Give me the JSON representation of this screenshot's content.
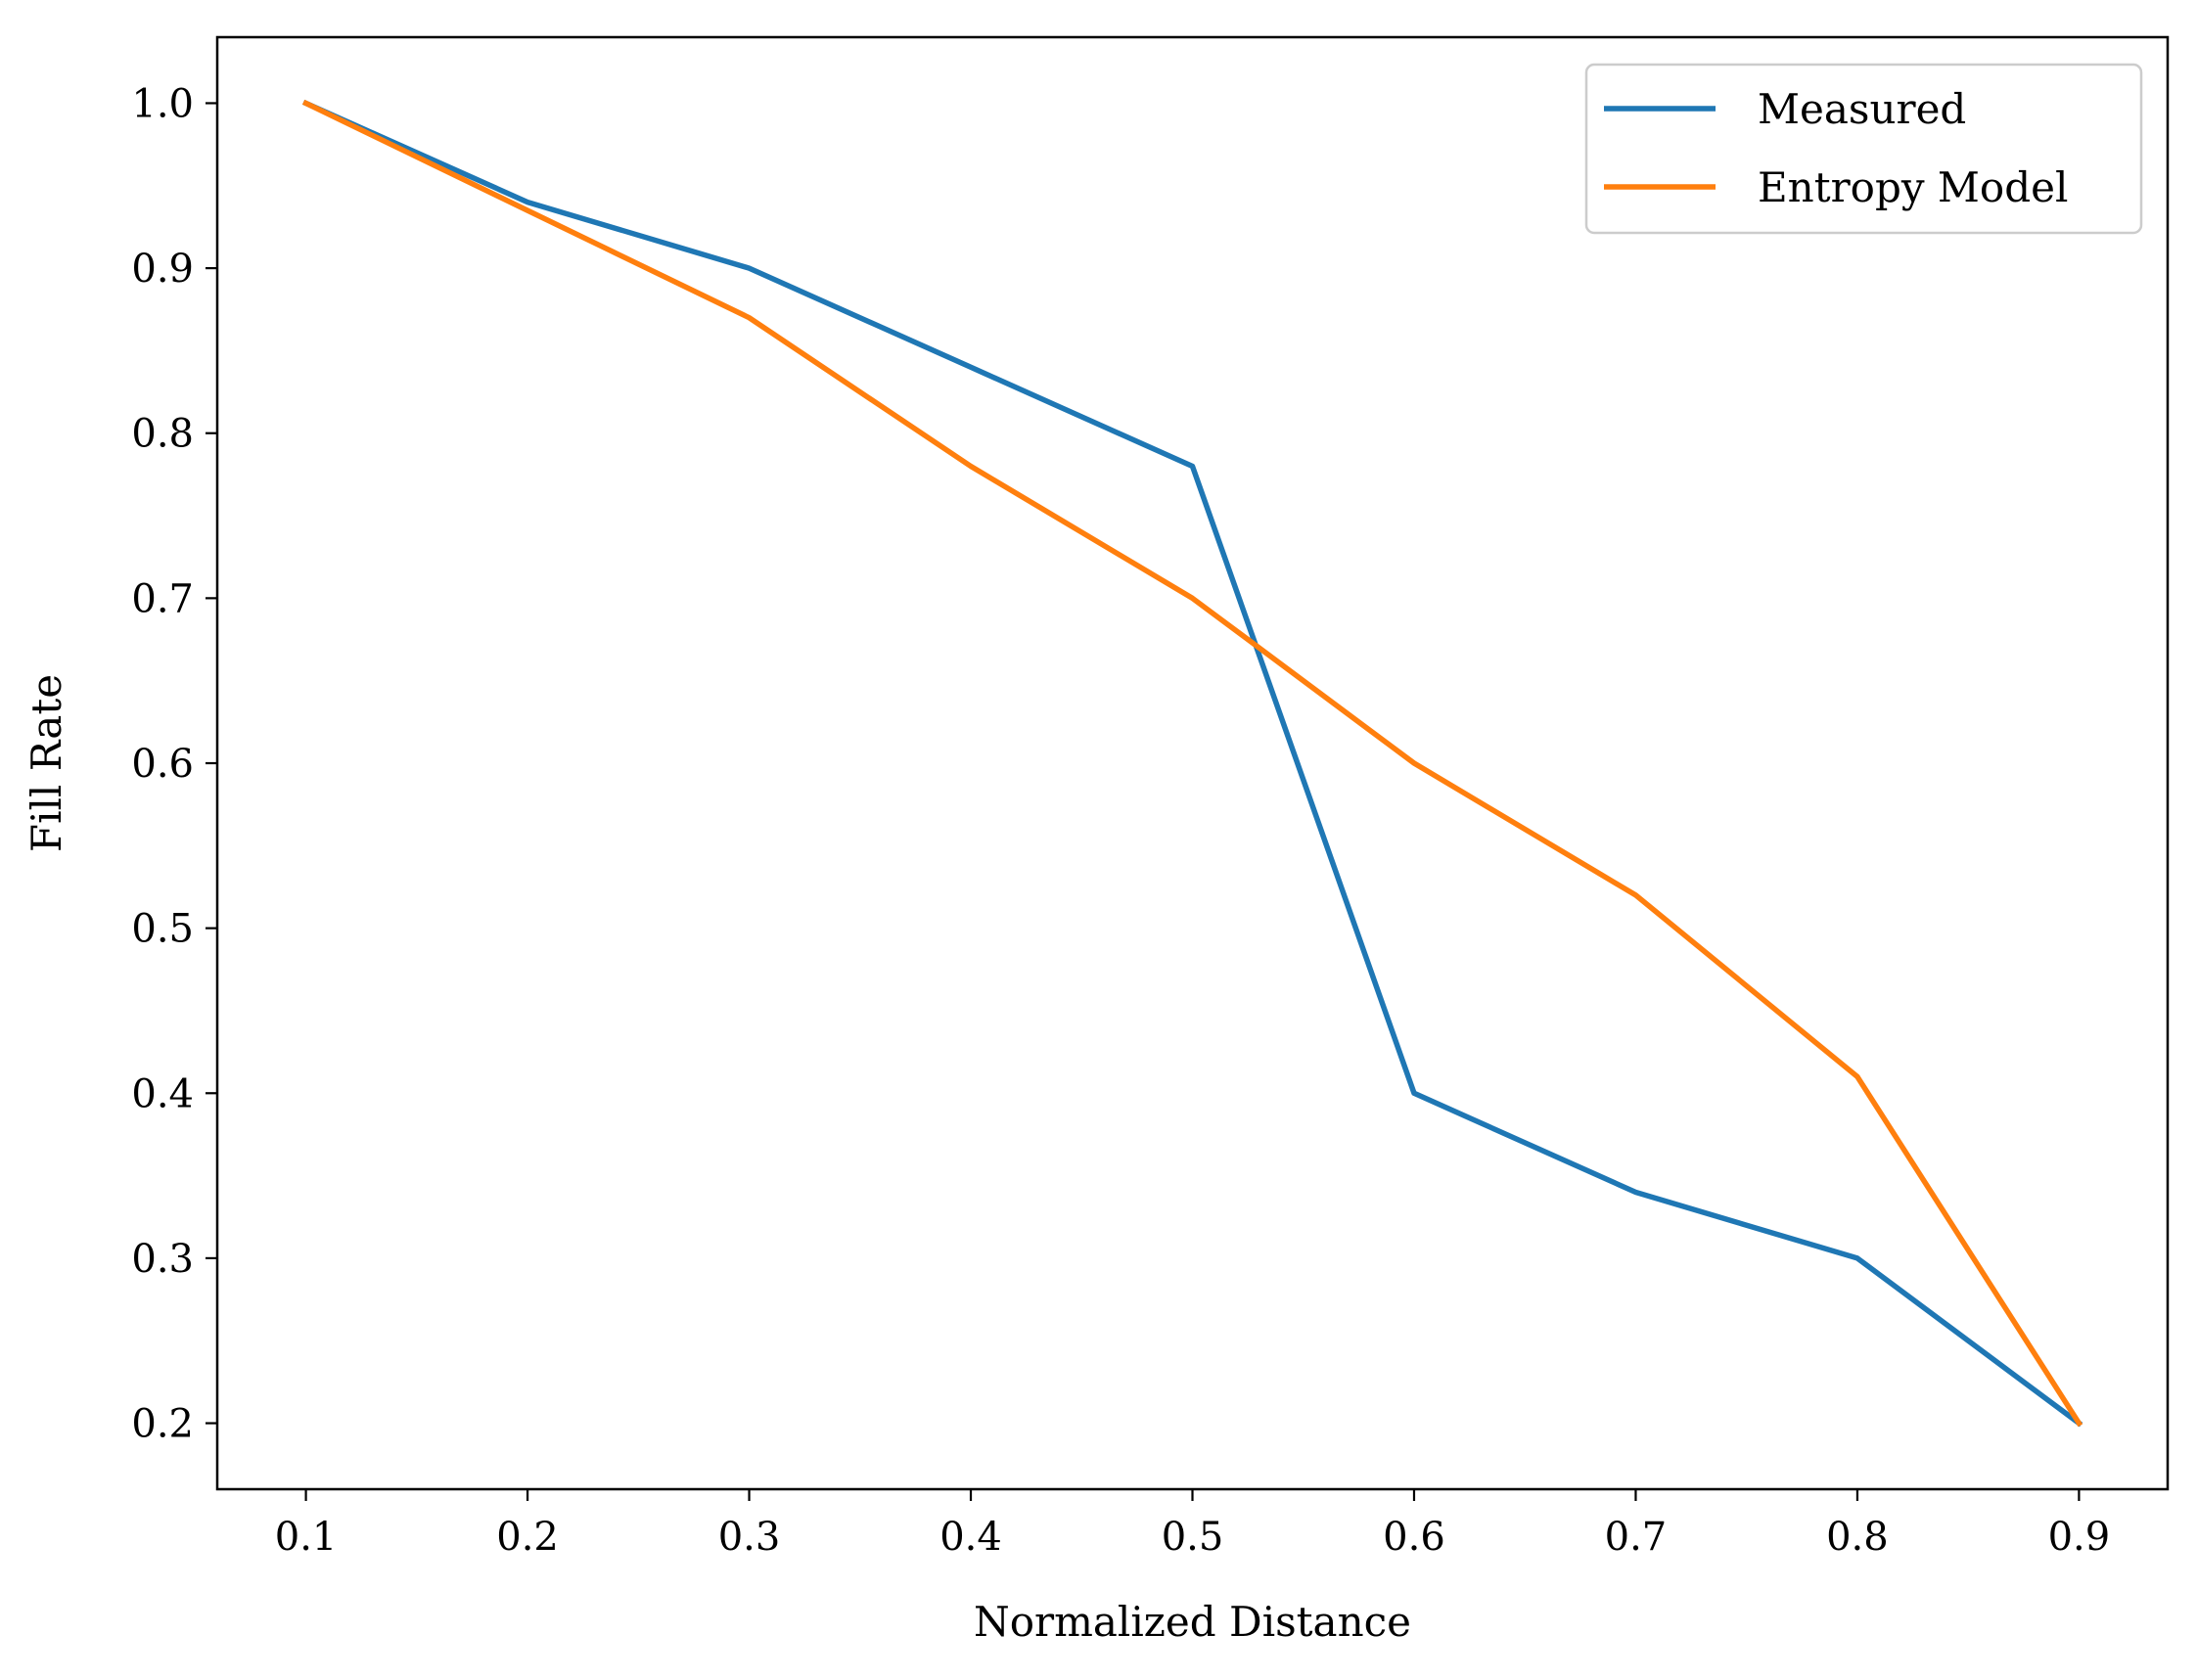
{
  "chart_data": {
    "type": "line",
    "title": "",
    "xlabel": "Normalized Distance",
    "ylabel": "Fill Rate",
    "xlim": [
      0.06,
      0.94
    ],
    "ylim": [
      0.16,
      1.04
    ],
    "xticks": [
      0.1,
      0.2,
      0.3,
      0.4,
      0.5,
      0.6,
      0.7,
      0.8,
      0.9
    ],
    "xtick_labels": [
      "0.1",
      "0.2",
      "0.3",
      "0.4",
      "0.5",
      "0.6",
      "0.7",
      "0.8",
      "0.9"
    ],
    "yticks": [
      0.2,
      0.3,
      0.4,
      0.5,
      0.6,
      0.7,
      0.8,
      0.9,
      1.0
    ],
    "ytick_labels": [
      "0.2",
      "0.3",
      "0.4",
      "0.5",
      "0.6",
      "0.7",
      "0.8",
      "0.9",
      "1.0"
    ],
    "grid": false,
    "legend_position": "top-right",
    "x": [
      0.1,
      0.2,
      0.3,
      0.4,
      0.5,
      0.6,
      0.7,
      0.8,
      0.9
    ],
    "series": [
      {
        "name": "Measured",
        "color": "#1f77b4",
        "values": [
          1.0,
          0.94,
          0.9,
          0.84,
          0.78,
          0.4,
          0.34,
          0.3,
          0.2
        ]
      },
      {
        "name": "Entropy Model",
        "color": "#ff7f0e",
        "values": [
          1.0,
          0.935,
          0.87,
          0.78,
          0.7,
          0.6,
          0.52,
          0.41,
          0.2
        ]
      }
    ]
  }
}
